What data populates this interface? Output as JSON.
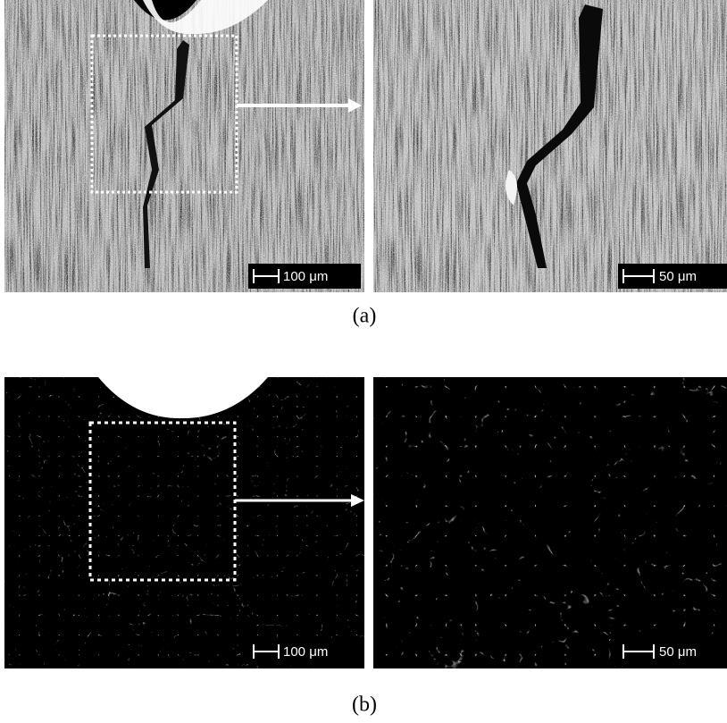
{
  "panels": [
    {
      "label": "(a)",
      "images": [
        {
          "scale_bar": "100 μm"
        },
        {
          "scale_bar": "50 μm"
        }
      ]
    },
    {
      "label": "(b)",
      "images": [
        {
          "scale_bar": "100 μm"
        },
        {
          "scale_bar": "50 μm"
        }
      ]
    }
  ]
}
